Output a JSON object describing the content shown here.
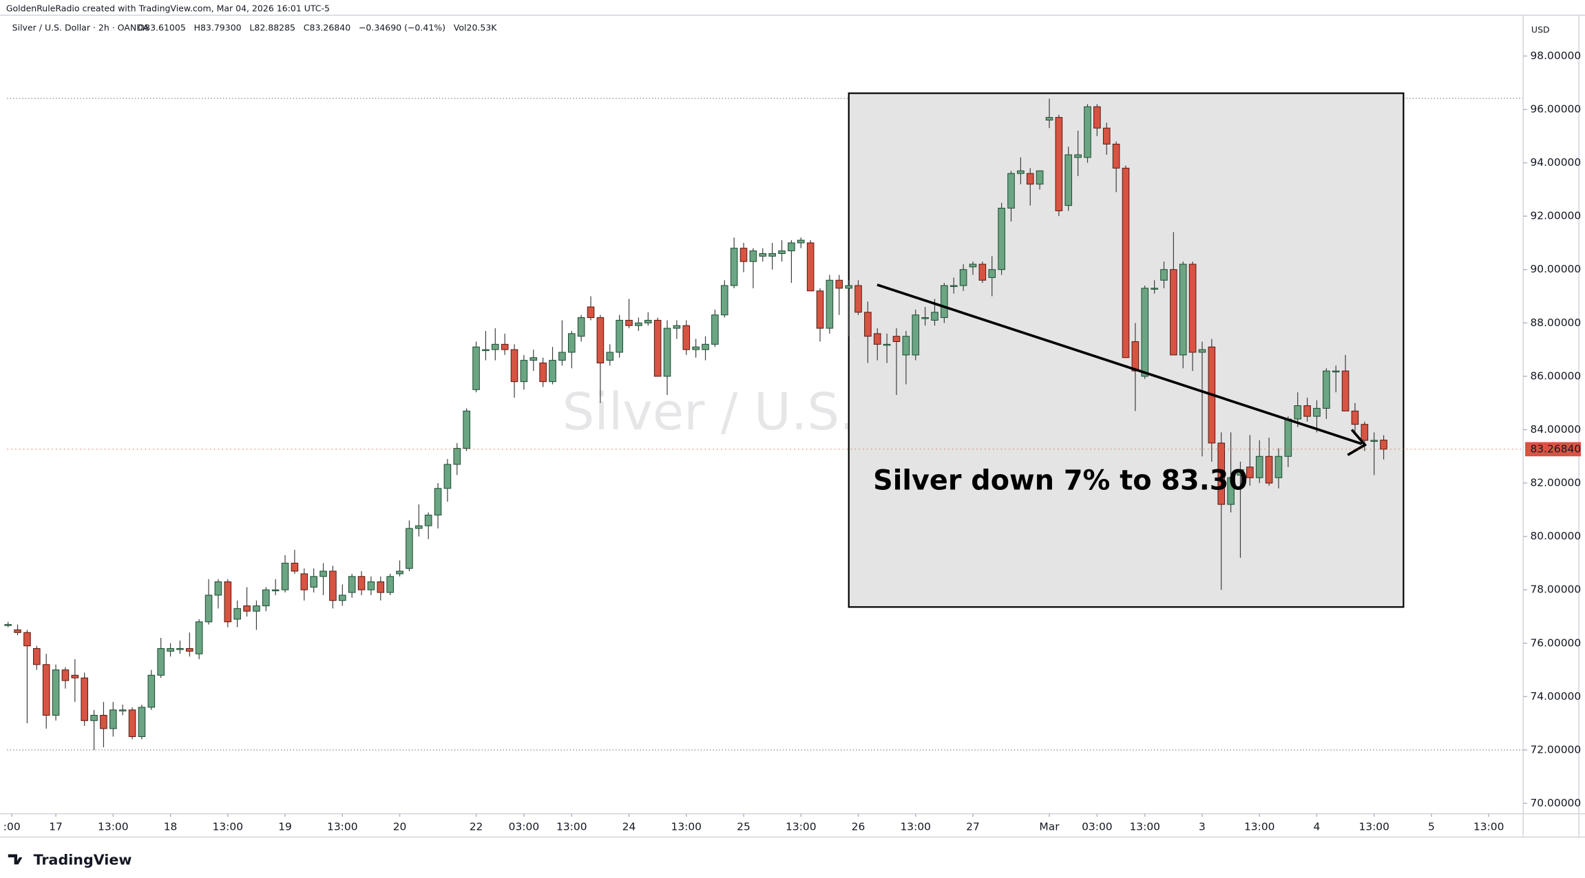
{
  "chart_data": {
    "type": "candlestick",
    "credit": "GoldenRuleRadio created with TradingView.com, Mar 04, 2026 16:01 UTC-5",
    "symbol": "Silver / U.S. Dollar · 2h · OANDA",
    "ohlc_header": [
      "O83.61005",
      "H83.79300",
      "L82.88285",
      "C83.26840",
      "−0.34690 (−0.41%)",
      "Vol20.53K"
    ],
    "watermark": "Silver / U.S. Dollar",
    "currency": "USD",
    "annotation": "Silver down 7% to 83.30",
    "logo": "TradingView",
    "up_color": "#6ba583",
    "down_color": "#d75442",
    "last_price": {
      "value": 83.2684,
      "label": "83.26840"
    },
    "ylim": [
      69.61,
      99.53
    ],
    "yticks": [
      {
        "value": 70,
        "label": "70.00000"
      },
      {
        "value": 72,
        "label": "72.00000"
      },
      {
        "value": 74,
        "label": "74.00000"
      },
      {
        "value": 76,
        "label": "76.00000"
      },
      {
        "value": 78,
        "label": "78.00000"
      },
      {
        "value": 80,
        "label": "80.00000"
      },
      {
        "value": 82,
        "label": "82.00000"
      },
      {
        "value": 84,
        "label": "84.00000"
      },
      {
        "value": 86,
        "label": "86.00000"
      },
      {
        "value": 88,
        "label": "88.00000"
      },
      {
        "value": 90,
        "label": "90.00000"
      },
      {
        "value": 92,
        "label": "92.00000"
      },
      {
        "value": 94,
        "label": "94.00000"
      },
      {
        "value": 96,
        "label": "96.00000"
      },
      {
        "value": 98,
        "label": "98.00000"
      }
    ],
    "xlim": [
      -0.1,
      158.6
    ],
    "xticks": [
      {
        "value": 0.4,
        "label": ":00"
      },
      {
        "value": 5,
        "label": "17"
      },
      {
        "value": 11,
        "label": "13:00"
      },
      {
        "value": 17,
        "label": "18"
      },
      {
        "value": 23,
        "label": "13:00"
      },
      {
        "value": 29,
        "label": "19"
      },
      {
        "value": 35,
        "label": "13:00"
      },
      {
        "value": 41,
        "label": "20"
      },
      {
        "value": 49,
        "label": "22"
      },
      {
        "value": 54,
        "label": "03:00"
      },
      {
        "value": 59,
        "label": "13:00"
      },
      {
        "value": 65,
        "label": "24"
      },
      {
        "value": 71,
        "label": "13:00"
      },
      {
        "value": 77,
        "label": "25"
      },
      {
        "value": 83,
        "label": "13:00"
      },
      {
        "value": 89,
        "label": "26"
      },
      {
        "value": 95,
        "label": "13:00"
      },
      {
        "value": 101,
        "label": "27"
      },
      {
        "value": 109,
        "label": "Mar"
      },
      {
        "value": 114,
        "label": "03:00"
      },
      {
        "value": 119,
        "label": "13:00"
      },
      {
        "value": 125,
        "label": "3"
      },
      {
        "value": 131,
        "label": "13:00"
      },
      {
        "value": 137,
        "label": "4"
      },
      {
        "value": 143,
        "label": "13:00"
      },
      {
        "value": 149,
        "label": "5"
      },
      {
        "value": 155,
        "label": "13:00"
      }
    ],
    "ohlc": [
      [
        76.7,
        76.8,
        76.6,
        76.7
      ],
      [
        76.5,
        76.7,
        76.3,
        76.4
      ],
      [
        76.4,
        76.5,
        73.0,
        75.9
      ],
      [
        75.8,
        75.9,
        75.0,
        75.2
      ],
      [
        75.2,
        75.6,
        72.8,
        73.3
      ],
      [
        73.3,
        75.2,
        73.1,
        75.0
      ],
      [
        75.0,
        75.1,
        74.3,
        74.6
      ],
      [
        74.8,
        75.4,
        73.8,
        74.7
      ],
      [
        74.7,
        74.9,
        72.9,
        73.1
      ],
      [
        73.1,
        73.5,
        72.0,
        73.3
      ],
      [
        73.3,
        73.8,
        72.1,
        72.8
      ],
      [
        72.8,
        73.8,
        72.5,
        73.5
      ],
      [
        73.5,
        73.7,
        73.3,
        73.5
      ],
      [
        73.5,
        73.6,
        72.4,
        72.5
      ],
      [
        72.5,
        73.7,
        72.4,
        73.6
      ],
      [
        73.6,
        75.0,
        73.5,
        74.8
      ],
      [
        74.8,
        76.2,
        74.7,
        75.8
      ],
      [
        75.7,
        76.0,
        75.5,
        75.8
      ],
      [
        75.8,
        76.1,
        75.6,
        75.8
      ],
      [
        75.8,
        76.4,
        75.5,
        75.7
      ],
      [
        75.6,
        76.9,
        75.4,
        76.8
      ],
      [
        76.8,
        78.4,
        76.7,
        77.8
      ],
      [
        77.8,
        78.4,
        77.3,
        78.3
      ],
      [
        78.3,
        78.4,
        76.6,
        76.8
      ],
      [
        76.9,
        77.6,
        76.6,
        77.3
      ],
      [
        77.4,
        78.1,
        77.0,
        77.2
      ],
      [
        77.2,
        77.6,
        76.5,
        77.4
      ],
      [
        77.4,
        78.1,
        77.2,
        78.0
      ],
      [
        78.0,
        78.4,
        77.8,
        78.0
      ],
      [
        78.0,
        79.3,
        77.9,
        79.0
      ],
      [
        79.0,
        79.5,
        78.6,
        78.7
      ],
      [
        78.6,
        78.8,
        77.6,
        78.0
      ],
      [
        78.1,
        78.8,
        77.9,
        78.5
      ],
      [
        78.5,
        79.0,
        77.8,
        78.7
      ],
      [
        78.7,
        78.9,
        77.3,
        77.6
      ],
      [
        77.6,
        78.2,
        77.4,
        77.8
      ],
      [
        77.9,
        78.6,
        77.7,
        78.5
      ],
      [
        78.5,
        78.7,
        77.8,
        78.0
      ],
      [
        78.0,
        78.5,
        77.8,
        78.3
      ],
      [
        78.3,
        78.5,
        77.6,
        77.9
      ],
      [
        77.9,
        78.6,
        77.8,
        78.5
      ],
      [
        78.6,
        79.1,
        78.5,
        78.7
      ],
      [
        78.8,
        80.6,
        78.7,
        80.3
      ],
      [
        80.3,
        81.2,
        80.0,
        80.4
      ],
      [
        80.4,
        80.9,
        79.9,
        80.8
      ],
      [
        80.8,
        82.0,
        80.3,
        81.8
      ],
      [
        81.8,
        82.9,
        81.3,
        82.7
      ],
      [
        82.7,
        83.5,
        82.3,
        83.3
      ],
      [
        83.3,
        84.8,
        83.2,
        84.7
      ],
      [
        85.5,
        87.3,
        85.4,
        87.1
      ],
      [
        87.0,
        87.7,
        86.6,
        87.0
      ],
      [
        87.0,
        87.8,
        86.6,
        87.2
      ],
      [
        87.2,
        87.6,
        86.8,
        87.0
      ],
      [
        87.0,
        87.2,
        85.2,
        85.8
      ],
      [
        85.8,
        86.8,
        85.5,
        86.6
      ],
      [
        86.6,
        87.0,
        86.2,
        86.7
      ],
      [
        86.5,
        86.7,
        85.6,
        85.8
      ],
      [
        85.8,
        87.1,
        85.7,
        86.6
      ],
      [
        86.6,
        88.1,
        86.4,
        86.9
      ],
      [
        86.9,
        87.7,
        86.3,
        87.6
      ],
      [
        87.5,
        88.3,
        87.3,
        88.2
      ],
      [
        88.6,
        89.0,
        88.1,
        88.2
      ],
      [
        88.2,
        88.3,
        85.0,
        86.5
      ],
      [
        86.6,
        87.2,
        86.4,
        86.9
      ],
      [
        86.9,
        88.3,
        86.7,
        88.1
      ],
      [
        88.1,
        88.9,
        87.8,
        87.9
      ],
      [
        87.9,
        88.2,
        87.7,
        88.0
      ],
      [
        88.0,
        88.4,
        87.9,
        88.1
      ],
      [
        88.1,
        88.2,
        86.0,
        86.0
      ],
      [
        86.0,
        88.1,
        85.3,
        87.8
      ],
      [
        87.8,
        88.1,
        87.4,
        87.9
      ],
      [
        87.9,
        88.1,
        86.8,
        87.0
      ],
      [
        87.0,
        87.4,
        86.7,
        87.1
      ],
      [
        87.0,
        87.5,
        86.6,
        87.2
      ],
      [
        87.2,
        88.5,
        87.1,
        88.3
      ],
      [
        88.3,
        89.6,
        88.2,
        89.4
      ],
      [
        89.4,
        91.2,
        89.3,
        90.8
      ],
      [
        90.8,
        91.0,
        89.9,
        90.3
      ],
      [
        90.3,
        90.8,
        89.3,
        90.7
      ],
      [
        90.5,
        90.8,
        90.3,
        90.6
      ],
      [
        90.5,
        91.0,
        90.0,
        90.6
      ],
      [
        90.6,
        91.1,
        90.3,
        90.7
      ],
      [
        90.7,
        91.1,
        89.5,
        91.0
      ],
      [
        91.0,
        91.2,
        90.8,
        91.1
      ],
      [
        91.0,
        91.1,
        89.2,
        89.2
      ],
      [
        89.2,
        89.3,
        87.3,
        87.8
      ],
      [
        87.8,
        89.8,
        87.6,
        89.6
      ],
      [
        89.6,
        89.8,
        88.3,
        89.3
      ],
      [
        89.3,
        89.6,
        87.5,
        89.4
      ],
      [
        89.4,
        89.6,
        88.3,
        88.4
      ],
      [
        88.4,
        88.8,
        86.5,
        87.5
      ],
      [
        87.6,
        87.8,
        86.6,
        87.2
      ],
      [
        87.2,
        87.6,
        86.5,
        87.2
      ],
      [
        87.5,
        87.8,
        85.3,
        87.3
      ],
      [
        86.8,
        87.7,
        85.7,
        87.5
      ],
      [
        86.8,
        88.5,
        86.6,
        88.3
      ],
      [
        88.2,
        88.6,
        87.9,
        88.2
      ],
      [
        88.1,
        88.9,
        87.9,
        88.4
      ],
      [
        88.2,
        89.5,
        88.0,
        89.4
      ],
      [
        89.4,
        89.7,
        89.1,
        89.4
      ],
      [
        89.4,
        90.2,
        89.2,
        90.0
      ],
      [
        90.1,
        90.3,
        89.8,
        90.2
      ],
      [
        90.2,
        90.3,
        89.5,
        89.6
      ],
      [
        89.7,
        90.5,
        89.0,
        90.0
      ],
      [
        90.0,
        92.5,
        89.8,
        92.3
      ],
      [
        92.3,
        93.7,
        91.8,
        93.6
      ],
      [
        93.6,
        94.2,
        93.2,
        93.7
      ],
      [
        93.6,
        93.8,
        92.4,
        93.2
      ],
      [
        93.2,
        93.7,
        93.0,
        93.7
      ],
      [
        95.6,
        96.4,
        95.3,
        95.7
      ],
      [
        95.7,
        95.8,
        92.0,
        92.2
      ],
      [
        92.4,
        94.6,
        92.2,
        94.3
      ],
      [
        94.2,
        95.2,
        93.5,
        94.3
      ],
      [
        94.2,
        96.2,
        94.0,
        96.1
      ],
      [
        96.1,
        96.2,
        95.0,
        95.3
      ],
      [
        95.3,
        95.5,
        94.3,
        94.7
      ],
      [
        94.7,
        94.8,
        92.9,
        93.8
      ],
      [
        93.8,
        93.9,
        86.7,
        86.7
      ],
      [
        87.3,
        88.0,
        84.7,
        86.2
      ],
      [
        86.0,
        89.4,
        85.9,
        89.3
      ],
      [
        89.3,
        89.6,
        89.1,
        89.3
      ],
      [
        89.6,
        90.3,
        89.3,
        90.0
      ],
      [
        90.0,
        91.4,
        86.8,
        86.8
      ],
      [
        86.8,
        90.3,
        86.3,
        90.2
      ],
      [
        90.2,
        90.3,
        86.2,
        86.9
      ],
      [
        86.9,
        87.3,
        83.0,
        87.0
      ],
      [
        87.1,
        87.4,
        82.8,
        83.5
      ],
      [
        83.5,
        83.9,
        78.0,
        81.2
      ],
      [
        81.2,
        83.9,
        80.9,
        82.2
      ],
      [
        82.3,
        82.8,
        79.2,
        82.5
      ],
      [
        82.6,
        83.8,
        81.9,
        82.2
      ],
      [
        82.2,
        83.6,
        82.0,
        83.0
      ],
      [
        83.0,
        83.7,
        81.9,
        82.0
      ],
      [
        82.2,
        83.3,
        81.8,
        83.0
      ],
      [
        83.0,
        84.5,
        82.6,
        84.4
      ],
      [
        84.4,
        85.4,
        84.1,
        84.9
      ],
      [
        84.9,
        85.2,
        84.3,
        84.5
      ],
      [
        84.5,
        85.1,
        83.9,
        84.8
      ],
      [
        84.8,
        86.3,
        84.4,
        86.2
      ],
      [
        86.2,
        86.4,
        85.4,
        86.2
      ],
      [
        86.2,
        86.8,
        84.7,
        84.7
      ],
      [
        84.7,
        85.0,
        83.9,
        84.2
      ],
      [
        84.2,
        84.3,
        83.2,
        83.6
      ],
      [
        83.6,
        83.9,
        82.3,
        83.6
      ],
      [
        83.61005,
        83.793,
        82.88285,
        83.2684
      ]
    ]
  }
}
